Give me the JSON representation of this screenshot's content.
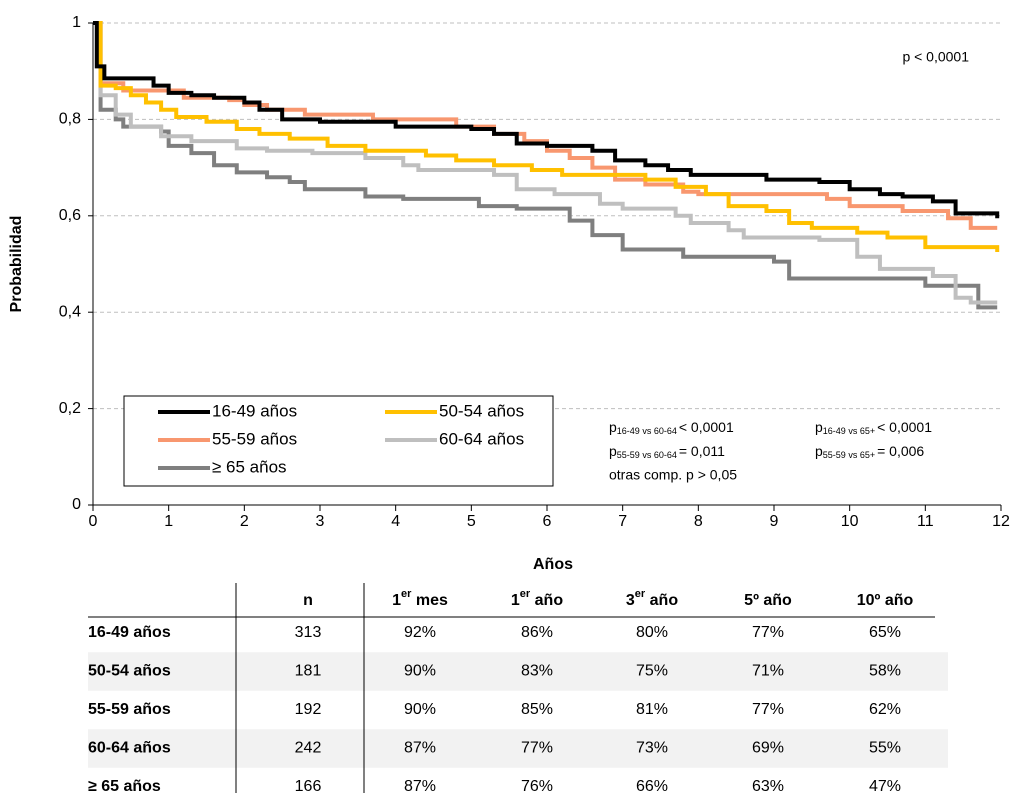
{
  "chart_data": {
    "type": "line",
    "step": true,
    "xlabel": "Años",
    "ylabel": "Probabilidad",
    "annotation": "p < 0,0001",
    "comparisons": [
      {
        "p": "p",
        "sub": "16-49 vs 60-64",
        "value": "< 0,0001"
      },
      {
        "p": "p",
        "sub": "16-49 vs 65+",
        "value": "< 0,0001"
      },
      {
        "p": "p",
        "sub": "55-59 vs 60-64",
        "value": "= 0,011"
      },
      {
        "p": "p",
        "sub": "55-59 vs 65+",
        "value": "= 0,006"
      }
    ],
    "note": "otras comp. p > 0,05",
    "xlim": [
      0,
      12
    ],
    "ylim": [
      0,
      1
    ],
    "xticks": [
      0,
      1,
      2,
      3,
      4,
      5,
      6,
      7,
      8,
      9,
      10,
      11,
      12
    ],
    "yticks": [
      0,
      {
        "value": 0.2,
        "label": "0,2"
      },
      {
        "value": 0.4,
        "label": "0,4"
      },
      {
        "value": 0.6,
        "label": "0,6"
      },
      {
        "value": 0.8,
        "label": "0,8"
      },
      1
    ],
    "grid": true,
    "legend": "bottom-left",
    "series": [
      {
        "name": "16-49 años",
        "color": "#000000",
        "x": [
          0,
          0.05,
          0.15,
          0.8,
          1.0,
          1.3,
          1.6,
          2.0,
          2.2,
          2.5,
          3.0,
          4.0,
          5.0,
          5.3,
          5.6,
          6.0,
          6.6,
          6.9,
          7.3,
          7.6,
          7.9,
          8.9,
          9.6,
          10.0,
          10.4,
          10.7,
          11.1,
          11.4,
          11.95
        ],
        "values": [
          1,
          0.91,
          0.885,
          0.87,
          0.855,
          0.85,
          0.845,
          0.835,
          0.82,
          0.8,
          0.795,
          0.785,
          0.78,
          0.77,
          0.75,
          0.745,
          0.735,
          0.715,
          0.705,
          0.695,
          0.685,
          0.675,
          0.67,
          0.655,
          0.645,
          0.64,
          0.63,
          0.605,
          0.595
        ]
      },
      {
        "name": "50-54 años",
        "color": "#ffc000",
        "x": [
          0,
          0.1,
          0.3,
          0.5,
          0.7,
          0.9,
          1.1,
          1.5,
          1.9,
          2.2,
          2.6,
          3.1,
          3.6,
          4.4,
          4.8,
          5.3,
          5.8,
          6.2,
          7.3,
          7.7,
          8.1,
          8.4,
          8.9,
          9.2,
          9.5,
          10.1,
          10.5,
          11.0,
          11.95
        ],
        "values": [
          1,
          0.87,
          0.865,
          0.85,
          0.835,
          0.82,
          0.805,
          0.795,
          0.78,
          0.77,
          0.76,
          0.745,
          0.735,
          0.725,
          0.715,
          0.705,
          0.695,
          0.685,
          0.675,
          0.66,
          0.645,
          0.62,
          0.61,
          0.585,
          0.575,
          0.565,
          0.555,
          0.535,
          0.525
        ]
      },
      {
        "name": "55-59 años",
        "color": "#f8976f",
        "x": [
          0,
          0.1,
          0.4,
          1.2,
          1.8,
          2.0,
          2.3,
          2.8,
          3.7,
          4.8,
          5.3,
          5.7,
          6.0,
          6.3,
          6.6,
          6.9,
          7.3,
          7.8,
          8.0,
          9.7,
          10.0,
          10.7,
          11.3,
          11.6,
          11.95
        ],
        "values": [
          1,
          0.875,
          0.86,
          0.845,
          0.84,
          0.83,
          0.82,
          0.81,
          0.8,
          0.785,
          0.77,
          0.755,
          0.735,
          0.72,
          0.7,
          0.675,
          0.665,
          0.65,
          0.645,
          0.635,
          0.62,
          0.61,
          0.595,
          0.575,
          0.575
        ]
      },
      {
        "name": "60-64 años",
        "color": "#bfbfbf",
        "x": [
          0,
          0.1,
          0.3,
          0.5,
          0.9,
          1.3,
          1.9,
          2.3,
          2.9,
          3.6,
          4.1,
          4.3,
          5.3,
          5.6,
          6.1,
          6.7,
          7.0,
          7.7,
          7.9,
          8.4,
          8.6,
          9.6,
          10.1,
          10.4,
          11.1,
          11.4,
          11.6,
          11.95
        ],
        "values": [
          1,
          0.85,
          0.81,
          0.785,
          0.765,
          0.755,
          0.74,
          0.735,
          0.73,
          0.72,
          0.705,
          0.695,
          0.685,
          0.655,
          0.645,
          0.625,
          0.615,
          0.6,
          0.585,
          0.57,
          0.555,
          0.55,
          0.515,
          0.49,
          0.475,
          0.43,
          0.42,
          0.42
        ]
      },
      {
        "name": "≥ 65 años",
        "color": "#7f7f7f",
        "x": [
          0,
          0.1,
          0.3,
          0.4,
          0.9,
          1.0,
          1.3,
          1.6,
          1.9,
          2.3,
          2.6,
          2.8,
          3.6,
          4.1,
          5.1,
          5.6,
          6.3,
          6.6,
          7.0,
          7.8,
          9.0,
          9.2,
          11.0,
          11.7,
          11.95
        ],
        "values": [
          1,
          0.82,
          0.8,
          0.785,
          0.775,
          0.745,
          0.73,
          0.705,
          0.69,
          0.68,
          0.67,
          0.655,
          0.64,
          0.635,
          0.62,
          0.615,
          0.59,
          0.56,
          0.53,
          0.515,
          0.505,
          0.47,
          0.455,
          0.41,
          0.41
        ]
      }
    ]
  },
  "table": {
    "header": [
      "n",
      {
        "main": "1",
        "sup": "er",
        "after": " mes"
      },
      {
        "main": "1",
        "sup": "er",
        "after": " año"
      },
      {
        "main": "3",
        "sup": "er",
        "after": " año"
      },
      "5º año",
      "10º año"
    ],
    "rows": [
      [
        "16-49 años",
        "313",
        "92%",
        "86%",
        "80%",
        "77%",
        "65%"
      ],
      [
        "50-54 años",
        "181",
        "90%",
        "83%",
        "75%",
        "71%",
        "58%"
      ],
      [
        "55-59 años",
        "192",
        "90%",
        "85%",
        "81%",
        "77%",
        "62%"
      ],
      [
        "60-64 años",
        "242",
        "87%",
        "77%",
        "73%",
        "69%",
        "55%"
      ],
      [
        "≥ 65 años",
        "166",
        "87%",
        "76%",
        "66%",
        "63%",
        "47%"
      ]
    ]
  }
}
